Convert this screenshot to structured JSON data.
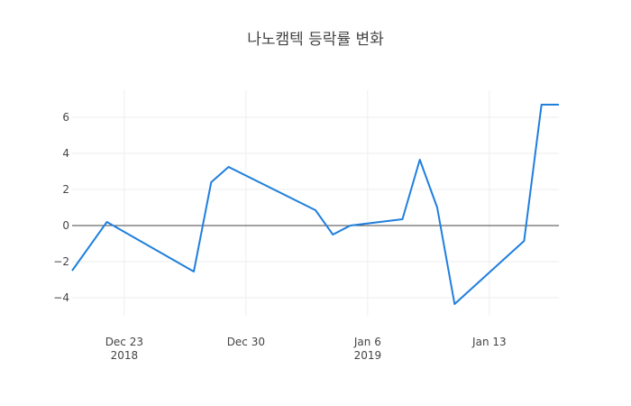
{
  "chart_data": {
    "type": "line",
    "title": "나노캠텍 등락률 변화",
    "xlabel": "",
    "ylabel": "",
    "x": [
      "2018-12-20",
      "2018-12-22",
      "2018-12-27",
      "2018-12-28",
      "2018-12-29",
      "2019-01-03",
      "2019-01-04",
      "2019-01-05",
      "2019-01-08",
      "2019-01-09",
      "2019-01-10",
      "2019-01-11",
      "2019-01-15",
      "2019-01-16",
      "2019-01-17"
    ],
    "series": [
      {
        "name": "",
        "values": [
          -2.5,
          0.2,
          -2.55,
          2.4,
          3.25,
          0.85,
          -0.5,
          0.0,
          0.35,
          3.65,
          1.0,
          -4.35,
          -0.85,
          6.7,
          6.7
        ]
      }
    ],
    "xlim": [
      "2018-12-20",
      "2019-01-17"
    ],
    "ylim": [
      -5.0,
      7.5
    ],
    "x_ticks": [
      {
        "date": "2018-12-23",
        "label": "Dec 23",
        "year": "2018"
      },
      {
        "date": "2018-12-30",
        "label": "Dec 30",
        "year": ""
      },
      {
        "date": "2019-01-06",
        "label": "Jan 6",
        "year": "2019"
      },
      {
        "date": "2019-01-13",
        "label": "Jan 13",
        "year": ""
      }
    ],
    "y_ticks": [
      {
        "value": -4,
        "label": "−4"
      },
      {
        "value": -2,
        "label": "−2"
      },
      {
        "value": 0,
        "label": "0"
      },
      {
        "value": 2,
        "label": "2"
      },
      {
        "value": 4,
        "label": "4"
      },
      {
        "value": 6,
        "label": "6"
      }
    ],
    "grid": true,
    "legend": "none",
    "colors": {
      "line": "#1f7fdd",
      "grid": "#eeeeee",
      "zeroline": "#444444",
      "text": "#444444"
    }
  }
}
